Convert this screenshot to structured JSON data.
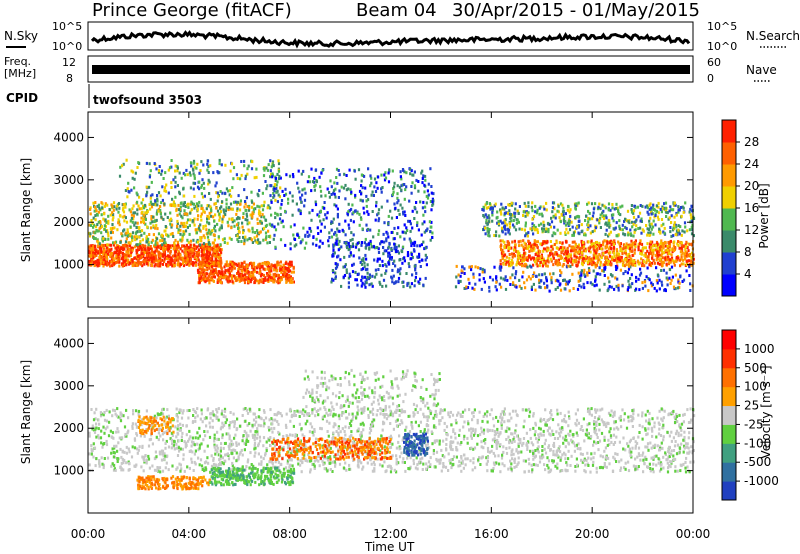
{
  "header": {
    "title": "Prince George (fitACF)",
    "beam": "Beam 04",
    "dates": "30/Apr/2015 - 01/May/2015"
  },
  "nsky_panel": {
    "left_label": "N.Sky",
    "right_label": "N.Search",
    "left_ticks": [
      "10^5",
      "10^0"
    ],
    "right_ticks": [
      "10^5",
      "10^0"
    ]
  },
  "freq_panel": {
    "left_label_1": "Freq.",
    "left_label_2": "[MHz]",
    "right_label": "Nave",
    "left_ticks": [
      "12",
      "8"
    ],
    "right_ticks": [
      "60",
      "0"
    ]
  },
  "cpid_panel": {
    "label": "CPID",
    "value": "twofsound 3503"
  },
  "time_axis": {
    "label": "Time UT",
    "ticks": [
      "00:00",
      "04:00",
      "08:00",
      "12:00",
      "16:00",
      "20:00",
      "00:00"
    ]
  },
  "chart_data": [
    {
      "type": "heatmap",
      "name": "power",
      "ylabel": "Slant Range [km]",
      "ylim": [
        0,
        4600
      ],
      "yticks": [
        "4000",
        "3000",
        "2000",
        "1000"
      ],
      "colorbar": {
        "label": "Power [dB]",
        "ticks": [
          "28",
          "24",
          "20",
          "16",
          "12",
          "8",
          "4"
        ],
        "colors": [
          "#0000ff",
          "#2040d0",
          "#3a8a6a",
          "#50b850",
          "#f0d000",
          "#ff9a00",
          "#ff6000",
          "#ff2000"
        ]
      }
    },
    {
      "type": "heatmap",
      "name": "velocity",
      "ylabel": "Slant Range [km]",
      "ylim": [
        0,
        4600
      ],
      "yticks": [
        "4000",
        "3000",
        "2000",
        "1000"
      ],
      "colorbar": {
        "label": "Velocity [m s⁻¹]",
        "ticks": [
          "1000",
          "500",
          "100",
          "25",
          "-25",
          "-100",
          "-500",
          "-1000"
        ],
        "colors": [
          "#2040c0",
          "#3070a0",
          "#40a080",
          "#60d040",
          "#c8c8c8",
          "#ffa000",
          "#ff7000",
          "#ff3000",
          "#ff0000"
        ]
      }
    }
  ]
}
